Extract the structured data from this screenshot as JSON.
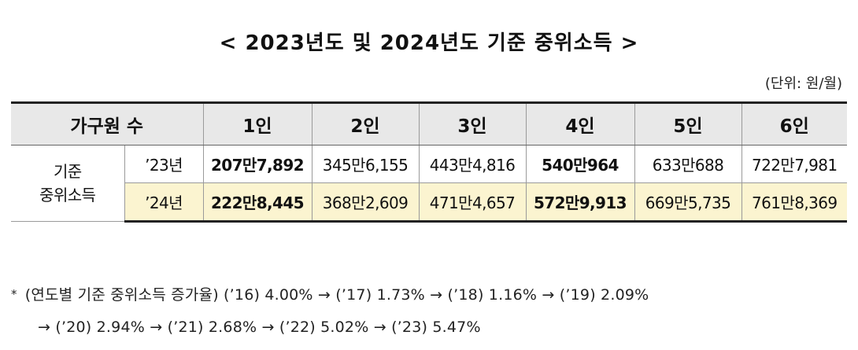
{
  "title": "< 2023년도 및 2024년도 기준 중위소득 >",
  "unit": "(단위: 원/월)",
  "table": {
    "header_col0": "가구원 수",
    "headers": [
      "1인",
      "2인",
      "3인",
      "4인",
      "5인",
      "6인"
    ],
    "row_label": [
      "기준",
      "중위소득"
    ],
    "rows": [
      {
        "year": "’23년",
        "values": [
          "207만7,892",
          "345만6,155",
          "443만4,816",
          "540만964",
          "633만688",
          "722만7,981"
        ]
      },
      {
        "year": "’24년",
        "values": [
          "222만8,445",
          "368만2,609",
          "471만4,657",
          "572만9,913",
          "669만5,735",
          "761만8,369"
        ]
      }
    ]
  },
  "note": {
    "bullet": "*",
    "line1": "(연도별 기준 중위소득 증가율) (’16) 4.00% → (’17) 1.73% → (’18) 1.16% → (’19) 2.09%",
    "line2": "→ (’20) 2.94% → (’21) 2.68% → (’22) 5.02% → (’23) 5.47%"
  }
}
